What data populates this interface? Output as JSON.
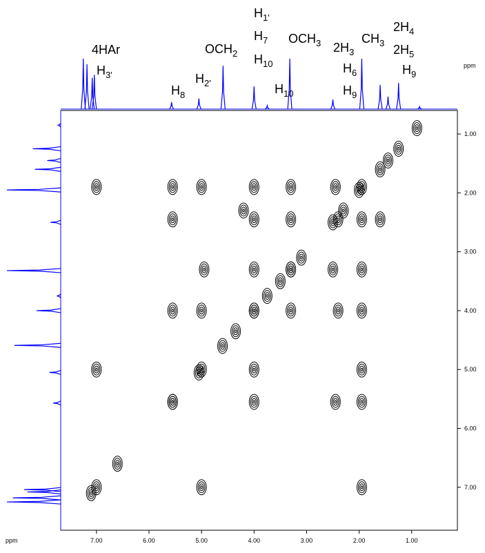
{
  "chart_data": {
    "type": "cosy",
    "x_unit": "ppm",
    "y_unit": "ppm",
    "xlim": [
      7.68,
      0.13
    ],
    "ylim": [
      0.6,
      7.73
    ],
    "xticks": [
      {
        "value": 7,
        "label": "7.00"
      },
      {
        "value": 6,
        "label": "6.00"
      },
      {
        "value": 5,
        "label": "5.00"
      },
      {
        "value": 4,
        "label": "4.00"
      },
      {
        "value": 3,
        "label": "3.00"
      },
      {
        "value": 2,
        "label": "2.00"
      },
      {
        "value": 1,
        "label": "1.00"
      }
    ],
    "yticks": [
      {
        "value": 1,
        "label": "1.00"
      },
      {
        "value": 2,
        "label": "2.00"
      },
      {
        "value": 3,
        "label": "3.00"
      },
      {
        "value": 4,
        "label": "4.00"
      },
      {
        "value": 5,
        "label": "5.00"
      },
      {
        "value": 6,
        "label": "6.00"
      },
      {
        "value": 7,
        "label": "7.00"
      }
    ],
    "projection": {
      "color": "#0000ff",
      "ppm": [
        7.25,
        7.18,
        7.08,
        7.04,
        5.57,
        5.05,
        4.59,
        4.0,
        3.75,
        3.32,
        2.5,
        1.95,
        1.6,
        1.45,
        1.25,
        0.85
      ],
      "intensity": [
        100,
        89,
        62,
        68,
        14,
        21,
        86,
        45,
        7,
        100,
        19,
        100,
        48,
        25,
        52,
        5
      ]
    },
    "peaks": {
      "color": "#000000",
      "x": [
        7.0,
        5.55,
        5.0,
        4.0,
        3.3,
        2.45,
        1.95,
        5.55,
        4.2,
        4.0,
        3.3,
        2.4,
        1.95,
        1.6,
        4.95,
        4.0,
        3.3,
        2.5,
        1.95,
        5.55,
        5.0,
        4.0,
        3.3,
        2.4,
        1.95,
        7.0,
        5.0,
        4.0,
        1.95,
        5.55,
        4.0,
        2.45,
        1.95,
        7.0,
        5.0,
        1.95,
        7.1,
        6.6,
        5.55,
        5.05,
        4.6,
        4.35,
        4.0,
        3.75,
        3.5,
        3.3,
        3.1,
        2.5,
        2.3,
        2.0,
        1.6,
        1.45,
        1.25,
        0.9
      ],
      "y": [
        1.9,
        1.9,
        1.9,
        1.9,
        1.9,
        1.9,
        1.9,
        2.45,
        2.3,
        2.45,
        2.45,
        2.45,
        2.45,
        2.45,
        3.3,
        3.3,
        3.3,
        3.3,
        3.3,
        4.0,
        4.0,
        4.0,
        4.0,
        4.0,
        4.0,
        5.0,
        5.0,
        5.0,
        5.0,
        5.55,
        5.55,
        5.55,
        5.55,
        7.0,
        7.0,
        7.0,
        7.1,
        6.6,
        5.55,
        5.05,
        4.6,
        4.35,
        4.0,
        3.75,
        3.5,
        3.3,
        3.1,
        2.5,
        2.3,
        1.95,
        1.6,
        1.45,
        1.25,
        0.9
      ]
    },
    "annotations": [
      {
        "text": "4HAr",
        "sub": ""
      },
      {
        "text": "H",
        "sub": "3'"
      },
      {
        "text": "H",
        "sub": "8"
      },
      {
        "text": "H",
        "sub": "2'"
      },
      {
        "text": "OCH",
        "sub": "2"
      },
      {
        "text": "H",
        "sub": "1'"
      },
      {
        "text": "H",
        "sub": "7"
      },
      {
        "text": "H",
        "sub": "10"
      },
      {
        "text": "H",
        "sub": "10"
      },
      {
        "text": "OCH",
        "sub": "3"
      },
      {
        "text": "2H",
        "sub": "3"
      },
      {
        "text": "H",
        "sub": "6"
      },
      {
        "text": "H",
        "sub": "9"
      },
      {
        "text": "CH",
        "sub": "3"
      },
      {
        "text": "2H",
        "sub": "4"
      },
      {
        "text": "2H",
        "sub": "5"
      },
      {
        "text": "H",
        "sub": "9"
      }
    ]
  }
}
